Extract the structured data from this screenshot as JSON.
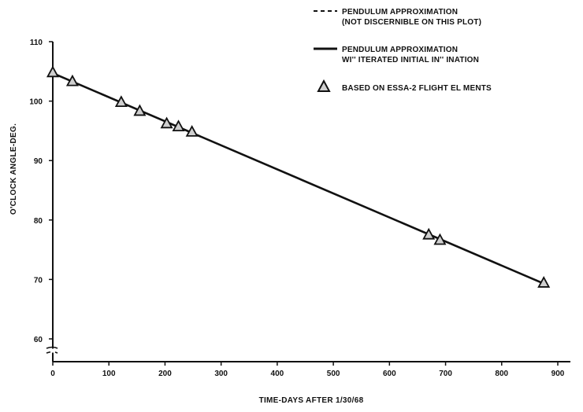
{
  "chart_data": {
    "type": "line",
    "title": "",
    "xlabel": "TIME-DAYS AFTER 1/30/68",
    "ylabel": "O'CLOCK ANGLE-DEG.",
    "xlim": [
      0,
      900
    ],
    "ylim": [
      60,
      110
    ],
    "y_axis_break": true,
    "grid": false,
    "legend_position": "top-right",
    "x_ticks": [
      "0",
      "100",
      "200",
      "300",
      "400",
      "500",
      "600",
      "700",
      "800",
      "900"
    ],
    "y_ticks": [
      "60",
      "70",
      "80",
      "90",
      "100",
      "110"
    ],
    "line": {
      "color": "#111111",
      "x": [
        0,
        875
      ],
      "y": [
        104.7,
        69.3
      ]
    },
    "points": {
      "x": [
        0,
        35,
        122,
        155,
        203,
        224,
        248,
        670,
        690,
        875
      ],
      "y": [
        104.8,
        103.3,
        99.8,
        98.3,
        96.2,
        95.7,
        94.8,
        77.5,
        76.6,
        69.4
      ]
    },
    "legend": [
      {
        "style": "dashed",
        "lines": [
          "PENDULUM APPROXIMATION",
          "(NOT DISCERNIBLE ON THIS PLOT)"
        ]
      },
      {
        "style": "solid",
        "lines": [
          "PENDULUM APPROXIMATION",
          "WI'' ITERATED  INITIAL  IN'' INATION"
        ]
      },
      {
        "style": "triangle",
        "lines": [
          "BASED ON ESSA-2 FLIGHT EL  MENTS"
        ]
      }
    ]
  }
}
